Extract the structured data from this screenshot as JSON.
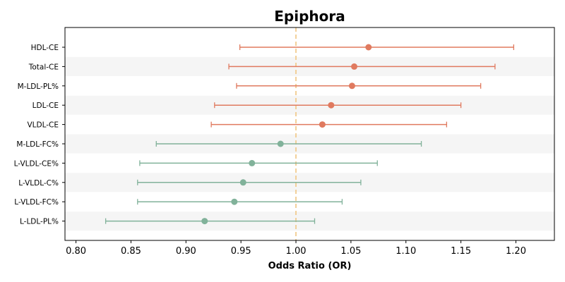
{
  "chart_data": {
    "type": "forest",
    "title": "Epiphora",
    "xlabel": "Odds Ratio (OR)",
    "ylabel": "",
    "xlim": [
      0.79,
      1.235
    ],
    "xticks": [
      0.8,
      0.85,
      0.9,
      0.95,
      1.0,
      1.05,
      1.1,
      1.15,
      1.2
    ],
    "xtick_labels": [
      "0.80",
      "0.85",
      "0.90",
      "0.95",
      "1.00",
      "1.05",
      "1.10",
      "1.15",
      "1.20"
    ],
    "reference_line": 1.0,
    "grid": false,
    "colors": {
      "positive": "#E07A5F",
      "negative": "#81B29A",
      "reference": "#F2CC8F",
      "band": "#F5F5F5"
    },
    "rows": [
      {
        "label": "HDL-CE",
        "or": 1.066,
        "lower": 0.949,
        "upper": 1.198,
        "group": "positive"
      },
      {
        "label": "Total-CE",
        "or": 1.053,
        "lower": 0.939,
        "upper": 1.181,
        "group": "positive"
      },
      {
        "label": "M-LDL-PL%",
        "or": 1.051,
        "lower": 0.946,
        "upper": 1.168,
        "group": "positive"
      },
      {
        "label": "LDL-CE",
        "or": 1.032,
        "lower": 0.926,
        "upper": 1.15,
        "group": "positive"
      },
      {
        "label": "VLDL-CE",
        "or": 1.024,
        "lower": 0.923,
        "upper": 1.137,
        "group": "positive"
      },
      {
        "label": "M-LDL-FC%",
        "or": 0.986,
        "lower": 0.873,
        "upper": 1.114,
        "group": "negative"
      },
      {
        "label": "L-VLDL-CE%",
        "or": 0.96,
        "lower": 0.858,
        "upper": 1.074,
        "group": "negative"
      },
      {
        "label": "L-VLDL-C%",
        "or": 0.952,
        "lower": 0.856,
        "upper": 1.059,
        "group": "negative"
      },
      {
        "label": "L-VLDL-FC%",
        "or": 0.944,
        "lower": 0.856,
        "upper": 1.042,
        "group": "negative"
      },
      {
        "label": "L-LDL-PL%",
        "or": 0.917,
        "lower": 0.827,
        "upper": 1.017,
        "group": "negative"
      }
    ]
  }
}
